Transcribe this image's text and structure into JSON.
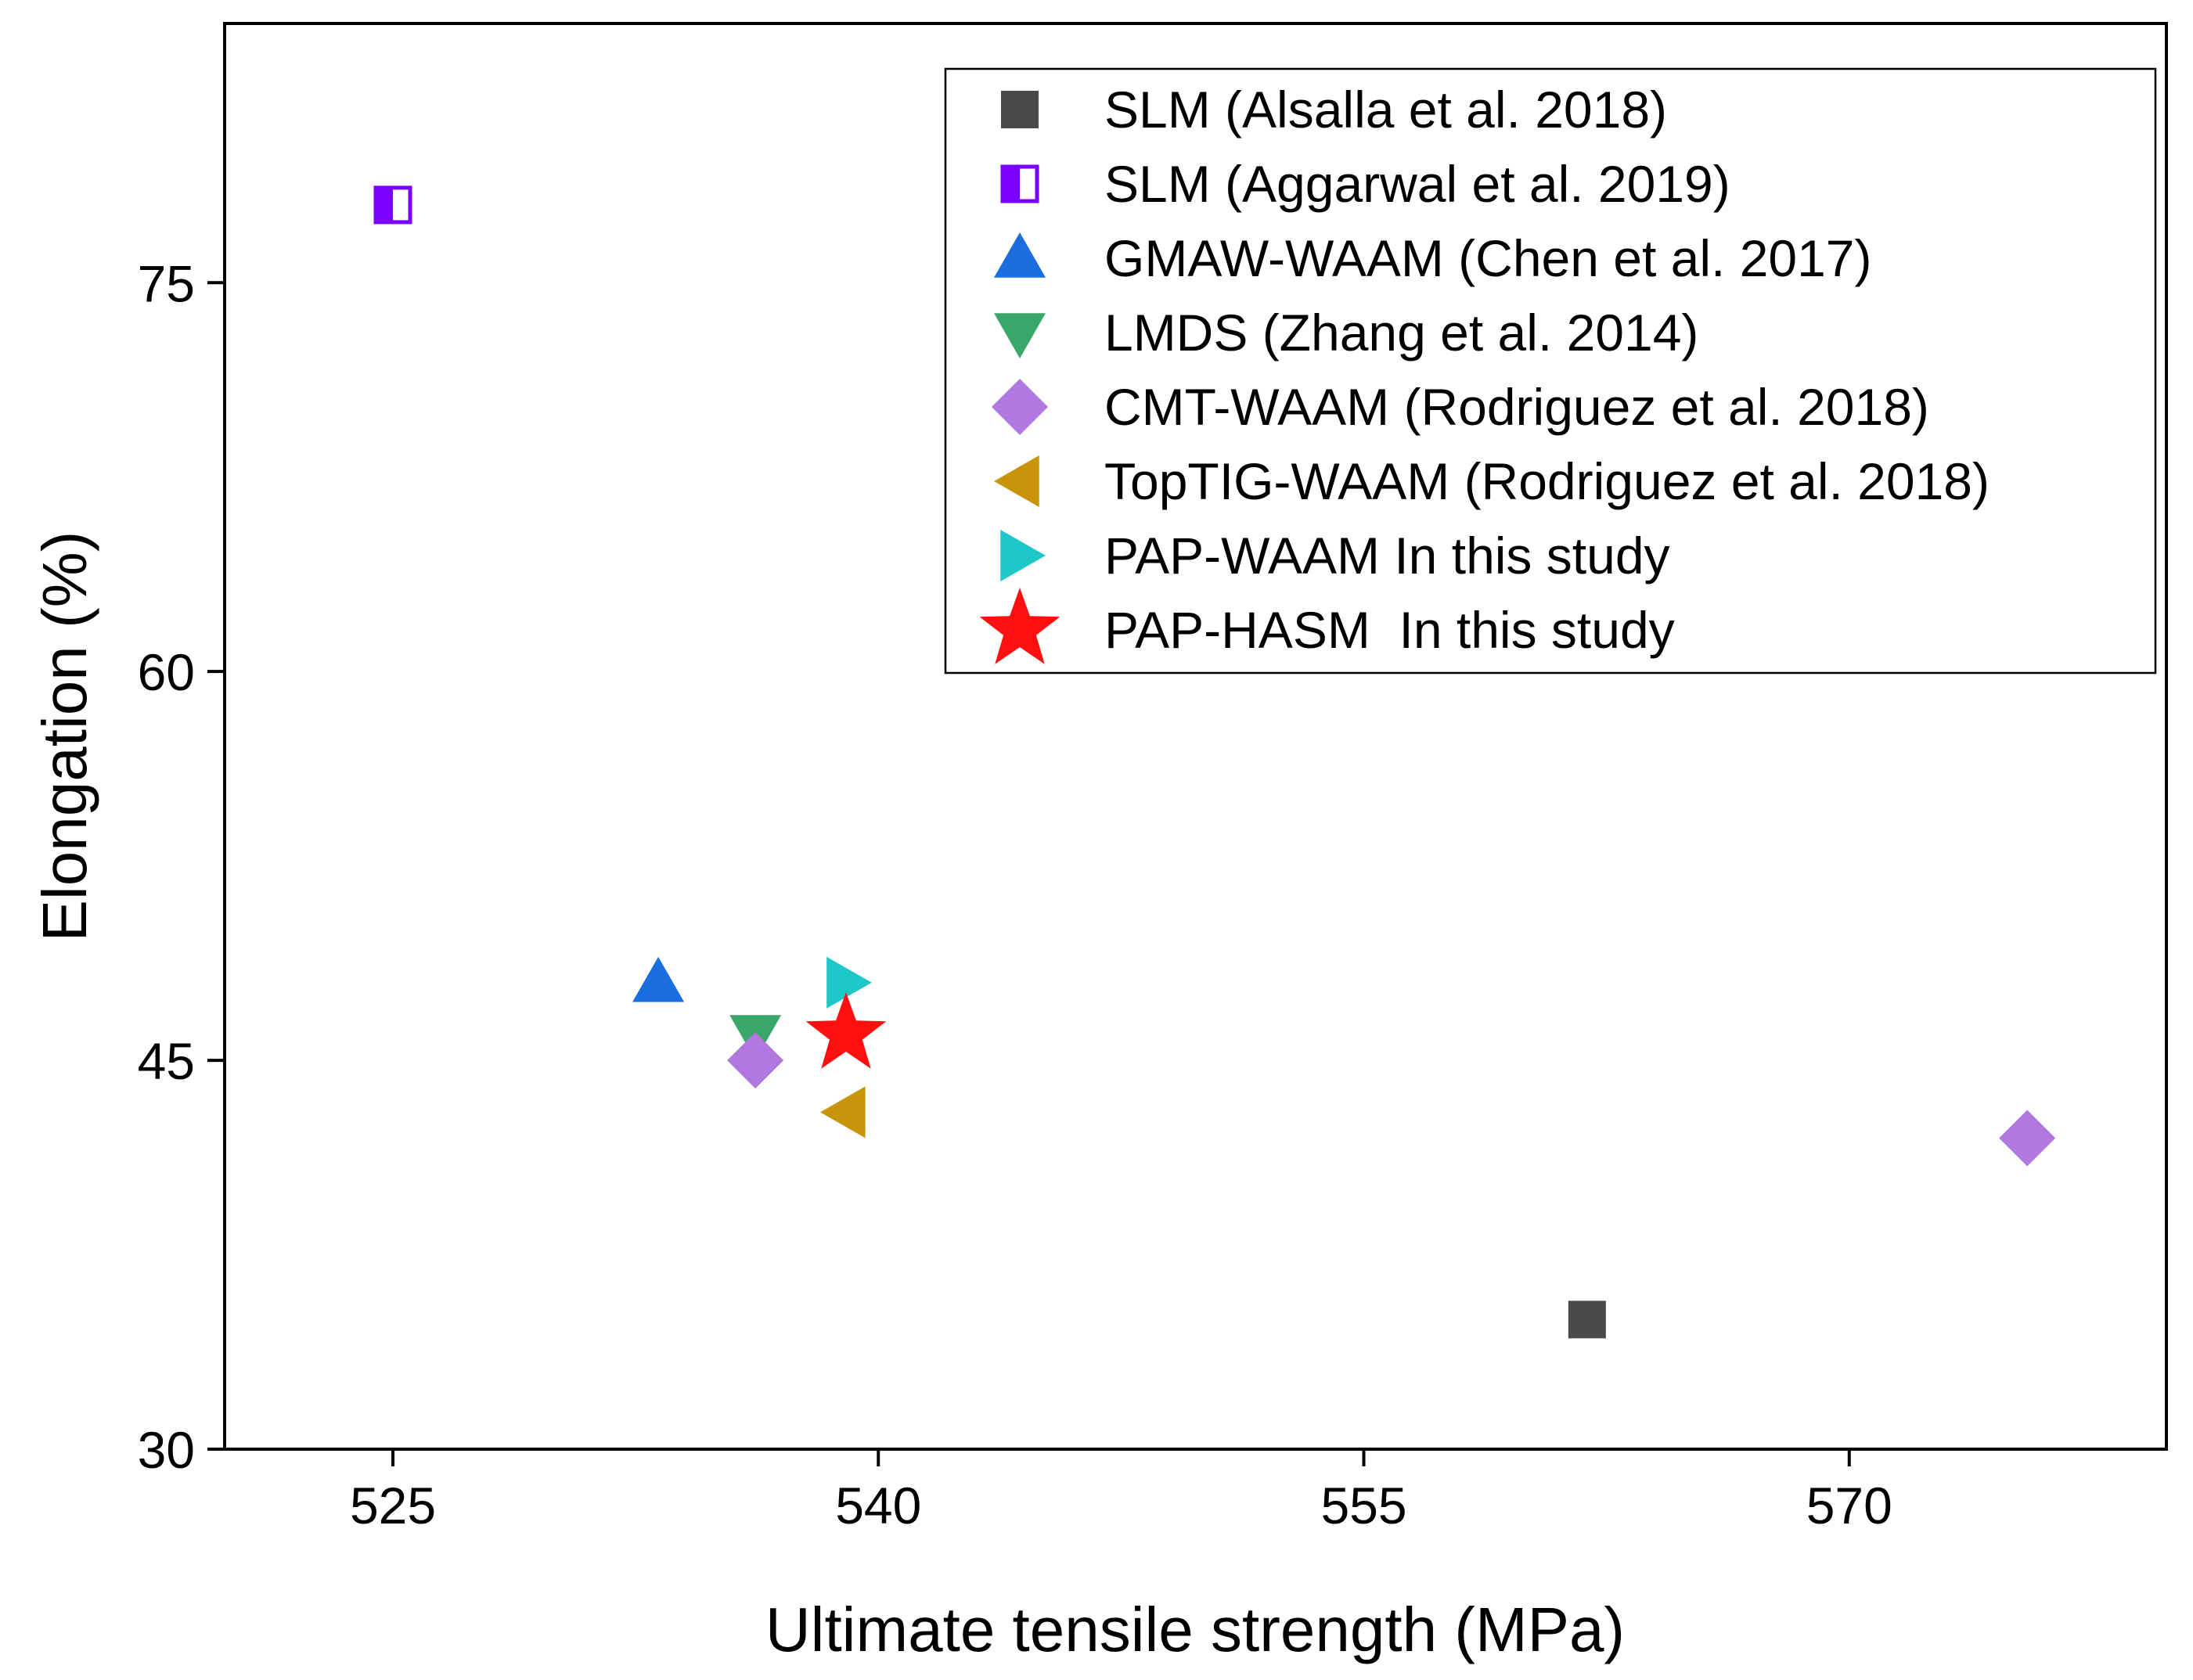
{
  "chart_data": {
    "type": "scatter",
    "title": "",
    "xlabel": "Ultimate tensile strength (MPa)",
    "ylabel": "Elongation (%)",
    "xlim": [
      519.8,
      579.8
    ],
    "ylim": [
      30,
      85
    ],
    "xticks": [
      525,
      540,
      555,
      570
    ],
    "yticks": [
      30,
      45,
      60,
      75
    ],
    "xtick_labels": [
      "525",
      "540",
      "555",
      "570"
    ],
    "ytick_labels": [
      "30",
      "45",
      "60",
      "75"
    ],
    "grid": false,
    "legend_position": "top-right",
    "series": [
      {
        "name": "SLM (Alsalla et al. 2018)",
        "marker": "square",
        "color": "#4a4a4a",
        "points": [
          [
            561.9,
            35
          ]
        ]
      },
      {
        "name": "SLM (Aggarwal et al. 2019)",
        "marker": "half-square",
        "color": "#7a00ff",
        "points": [
          [
            525.0,
            78
          ]
        ]
      },
      {
        "name": "GMAW-WAAM (Chen et al. 2017)",
        "marker": "triangle-up",
        "color": "#1a6ee0",
        "points": [
          [
            533.2,
            48
          ]
        ]
      },
      {
        "name": "LMDS (Zhang et al. 2014)",
        "marker": "triangle-down",
        "color": "#3aa76a",
        "points": [
          [
            536.2,
            46
          ]
        ]
      },
      {
        "name": "CMT-WAAM (Rodriguez et al. 2018)",
        "marker": "diamond",
        "color": "#b178e0",
        "points": [
          [
            536.2,
            45
          ],
          [
            575.5,
            42
          ]
        ]
      },
      {
        "name": "TopTIG-WAAM (Rodriguez et al. 2018)",
        "marker": "triangle-left",
        "color": "#c8950a",
        "points": [
          [
            539.0,
            43
          ]
        ]
      },
      {
        "name": "PAP-WAAM In this study",
        "marker": "triangle-right",
        "color": "#1ec8c8",
        "points": [
          [
            539.0,
            48
          ]
        ]
      },
      {
        "name": "PAP-HASM  In this study",
        "marker": "star",
        "color": "#ff1010",
        "points": [
          [
            539.0,
            46
          ]
        ]
      }
    ]
  }
}
